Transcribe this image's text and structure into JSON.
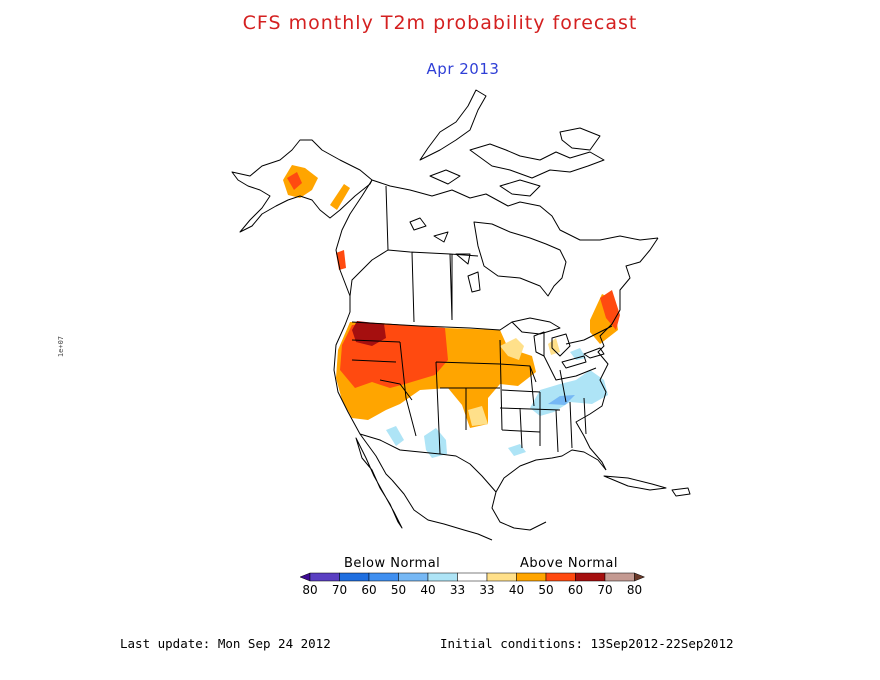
{
  "title": "CFS monthly T2m probability forecast",
  "subtitle": "Apr 2013",
  "colors": {
    "title": "#d42020",
    "subtitle": "#2f3fd6"
  },
  "legend": {
    "below_label": "Below Normal",
    "above_label": "Above Normal",
    "ticks": [
      "80",
      "70",
      "60",
      "50",
      "40",
      "33",
      "33",
      "40",
      "50",
      "60",
      "70",
      "80"
    ],
    "colors": [
      "#3d0a93",
      "#5a3fc2",
      "#1f6fe0",
      "#3f8ff0",
      "#76b8f5",
      "#aee4f6",
      "#ffffff",
      "#ffe08a",
      "#ffa500",
      "#ff4a10",
      "#a50f0f",
      "#c49a92",
      "#6b3a2a"
    ]
  },
  "footer": {
    "last_update": "Last update: Mon Sep 24 2012",
    "initial_conditions": "Initial conditions: 13Sep2012-22Sep2012"
  },
  "side_mark": "1e+07"
}
